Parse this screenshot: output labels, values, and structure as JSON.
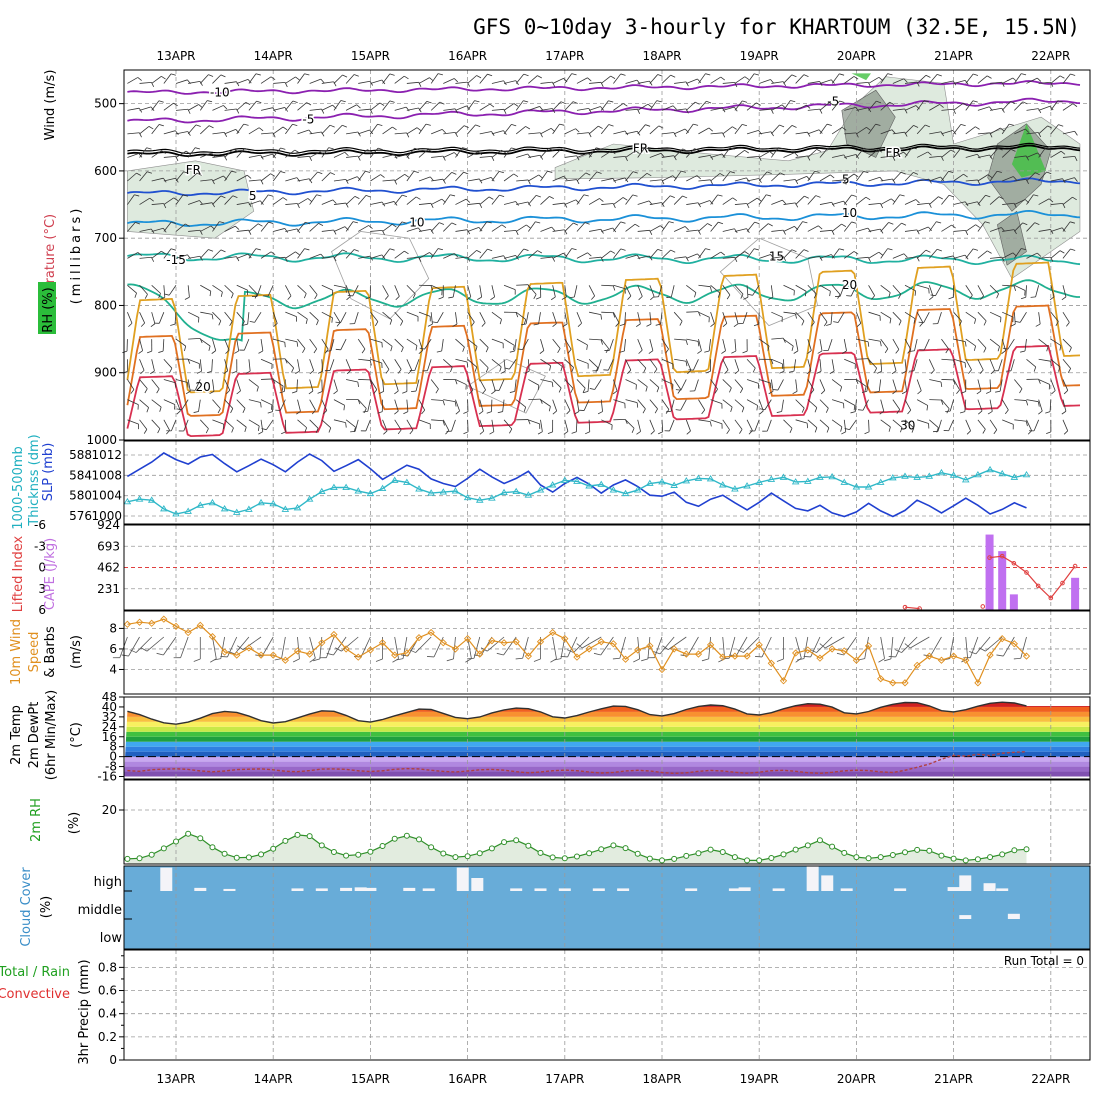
{
  "chart_data": {
    "type": "meteogram",
    "title": "GFS 0~10day 3-hourly for KHARTOUM (32.5E, 15.5N)",
    "dates": [
      "13APR",
      "14APR",
      "15APR",
      "16APR",
      "17APR",
      "18APR",
      "19APR",
      "20APR",
      "21APR",
      "22APR"
    ],
    "panels": {
      "upper_air": {
        "ylabel_temperature": "Temperature (°C)",
        "ylabel_wind": "Wind (m/s)",
        "ylabel_pressure": "(millibars)",
        "ylabel_rh": "RH (%)",
        "y_ticks": [
          500,
          600,
          700,
          800,
          900,
          1000
        ],
        "ylim": [
          1000,
          450
        ],
        "isotherm_labels": [
          {
            "text": "-10",
            "day": 0.35,
            "p": 482
          },
          {
            "text": "-5",
            "day": 1.3,
            "p": 522
          },
          {
            "text": "-5",
            "day": 6.7,
            "p": 495
          },
          {
            "text": "FR",
            "day": 0.1,
            "p": 597
          },
          {
            "text": "FR",
            "day": 4.7,
            "p": 565
          },
          {
            "text": "FR",
            "day": 7.3,
            "p": 572
          },
          {
            "text": "5",
            "day": 0.75,
            "p": 636
          },
          {
            "text": "5",
            "day": 6.85,
            "p": 611
          },
          {
            "text": "10",
            "day": 2.4,
            "p": 675
          },
          {
            "text": "10",
            "day": 6.85,
            "p": 661
          },
          {
            "text": "-15",
            "day": -0.1,
            "p": 731
          },
          {
            "text": "15",
            "day": 6.1,
            "p": 726
          },
          {
            "text": "20",
            "day": 6.85,
            "p": 768
          },
          {
            "text": "20",
            "day": 0.2,
            "p": 920
          },
          {
            "text": "30",
            "day": 7.45,
            "p": 977
          }
        ]
      },
      "thickness_slp": {
        "ylabel_thickness_1": "1000-500mb",
        "ylabel_thickness_2": "Thicknss (dm)",
        "ylabel_slp": "SLP (mb)",
        "thickness_ticks": [
          576,
          580,
          584,
          588
        ],
        "slp_ticks": [
          1000,
          1004,
          1008,
          1012
        ],
        "slp": [
          1007.8,
          1009.2,
          1010.6,
          1012.4,
          1011.1,
          1010.2,
          1011.6,
          1012.1,
          1010.3,
          1008.7,
          1009.9,
          1011.2,
          1010.1,
          1008.7,
          1010.6,
          1012.2,
          1010.9,
          1008.8,
          1009.9,
          1011.1,
          1009.3,
          1007.2,
          1008.6,
          1010.0,
          1009.2,
          1007.3,
          1006.4,
          1005.8,
          1007.4,
          1009.2,
          1007.7,
          1006.4,
          1007.4,
          1008.8,
          1006.1,
          1004.7,
          1006.4,
          1007.6,
          1006.3,
          1004.5,
          1006.1,
          1007.1,
          1005.8,
          1004.1,
          1003.9,
          1004.7,
          1002.7,
          1001.9,
          1003.3,
          1004.1,
          1002.6,
          1001.2,
          1002.7,
          1004.5,
          1003.0,
          1001.5,
          1001.0,
          1002.1,
          1000.6,
          999.9,
          1000.8,
          1002.5,
          1001.0,
          999.9,
          1001.1,
          1003.1,
          1002.0,
          1000.6,
          1002.0,
          1003.5,
          1002.1,
          1000.4,
          1001.3,
          1002.6,
          1001.6
        ],
        "thickness": [
          578.8,
          579.3,
          579.1,
          577.4,
          576.4,
          576.9,
          578.1,
          578.6,
          577.4,
          576.7,
          577.3,
          578.6,
          578.4,
          577.3,
          577.6,
          579.3,
          580.8,
          581.6,
          581.6,
          580.9,
          580.4,
          581.4,
          583.0,
          582.6,
          581.3,
          580.5,
          580.7,
          580.9,
          579.6,
          579.1,
          579.5,
          580.6,
          580.8,
          580.1,
          581.1,
          582.1,
          583.0,
          582.8,
          581.9,
          582.2,
          581.1,
          580.4,
          581.1,
          582.4,
          582.7,
          582.0,
          582.9,
          583.4,
          583.3,
          582.1,
          581.3,
          581.9,
          582.6,
          583.2,
          583.6,
          582.7,
          582.8,
          583.6,
          583.7,
          582.6,
          581.7,
          581.7,
          582.6,
          583.5,
          583.8,
          583.6,
          583.8,
          584.5,
          584.0,
          583.1,
          584.1,
          585.1,
          584.3,
          583.6,
          584.1
        ]
      },
      "cape_li": {
        "ylabel_li": "Lifted Index",
        "ylabel_cape": "CAPE (J/kg)",
        "li_ticks": [
          -6,
          -3,
          0,
          3,
          6
        ],
        "cape_ticks": [
          231,
          462,
          693,
          924
        ],
        "cape": [
          {
            "day": 8.37,
            "value": 820
          },
          {
            "day": 8.5,
            "value": 640
          },
          {
            "day": 8.62,
            "value": 170
          },
          {
            "day": 9.25,
            "value": 350
          }
        ],
        "li": [
          {
            "day": 7.5,
            "value": 5.6
          },
          {
            "day": 7.65,
            "value": 5.8
          },
          {
            "day": 8.3,
            "value": 5.5
          },
          {
            "day": 8.37,
            "value": -1.4
          },
          {
            "day": 8.5,
            "value": -1.6
          },
          {
            "day": 8.62,
            "value": -0.6
          },
          {
            "day": 8.75,
            "value": 0.7
          },
          {
            "day": 8.87,
            "value": 2.6
          },
          {
            "day": 9.0,
            "value": 4.3
          },
          {
            "day": 9.12,
            "value": 2.2
          },
          {
            "day": 9.25,
            "value": -0.2
          }
        ]
      },
      "wind10m": {
        "ylabel_1": "10m Wind",
        "ylabel_2": "Speed",
        "ylabel_3": "& Barbs",
        "ylabel_unit": "(m/s)",
        "y_ticks": [
          4,
          6,
          8
        ],
        "speed": [
          8.4,
          8.6,
          8.5,
          8.9,
          8.2,
          7.6,
          8.3,
          7.2,
          5.7,
          5.4,
          6.1,
          5.4,
          5.4,
          4.9,
          5.8,
          5.5,
          6.6,
          7.4,
          6.0,
          5.2,
          5.9,
          6.6,
          5.4,
          5.6,
          7.1,
          7.6,
          6.6,
          6.0,
          7.0,
          5.5,
          6.8,
          6.6,
          6.7,
          5.3,
          6.7,
          7.6,
          7.0,
          5.2,
          6.0,
          6.7,
          6.5,
          5.0,
          5.9,
          6.3,
          4.0,
          6.0,
          5.5,
          5.5,
          6.4,
          5.2,
          5.3,
          5.3,
          6.4,
          4.6,
          2.9,
          5.6,
          5.9,
          5.1,
          6.0,
          5.8,
          4.9,
          6.3,
          3.1,
          2.7,
          2.7,
          4.4,
          5.3,
          4.9,
          5.3,
          4.9,
          2.7,
          5.4,
          7.0,
          6.5,
          5.3
        ],
        "barb_angles": [
          200,
          210,
          225,
          230,
          215,
          200,
          180,
          170,
          190,
          205,
          220,
          235,
          210,
          190,
          175,
          165,
          185,
          200,
          215,
          230,
          205,
          180,
          170,
          190,
          210,
          225,
          205,
          185,
          170,
          195,
          210,
          230,
          215,
          195,
          180,
          170,
          190,
          205,
          225,
          240,
          215,
          195,
          175,
          185,
          200,
          220,
          235,
          210,
          185,
          175,
          195,
          210,
          225,
          205,
          180,
          165,
          190,
          205,
          225,
          240,
          215,
          190,
          170,
          185,
          205,
          225,
          240,
          210,
          190,
          175,
          200,
          220,
          230,
          210,
          195
        ]
      },
      "temp2m": {
        "ylabel_1": "2m Temp",
        "ylabel_2": "2m DewPt",
        "ylabel_3": "(6hr Min/Max)",
        "ylabel_unit": "(°C)",
        "y_ticks": [
          -16,
          -8,
          0,
          8,
          16,
          24,
          32,
          40,
          48
        ],
        "temp": [
          36.5,
          33.8,
          30.2,
          27.2,
          26.1,
          27.8,
          30.9,
          34.6,
          36.4,
          35.6,
          32.6,
          28.9,
          27.1,
          28.1,
          31.2,
          34.2,
          36.9,
          36.5,
          33.2,
          28.9,
          27.8,
          29.9,
          32.9,
          35.6,
          38.3,
          37.9,
          34.8,
          31.6,
          30.5,
          31.9,
          35.2,
          37.6,
          39.1,
          38.6,
          36.0,
          32.1,
          31.1,
          33.0,
          35.9,
          38.5,
          40.7,
          40.4,
          37.8,
          33.8,
          32.8,
          34.6,
          37.9,
          40.4,
          41.6,
          41.0,
          38.3,
          34.4,
          33.5,
          35.4,
          38.5,
          41.0,
          42.6,
          42.2,
          39.9,
          35.3,
          34.4,
          36.3,
          39.7,
          42.1,
          43.6,
          43.4,
          40.8,
          37.0,
          36.0,
          37.8,
          40.6,
          42.9,
          43.8,
          43.2,
          40.8
        ],
        "dewpt": [
          -11.2,
          -11.8,
          -10.5,
          -10.1,
          -9.8,
          -10.3,
          -11.5,
          -12.2,
          -11.6,
          -10.4,
          -10.1,
          -9.9,
          -10.6,
          -11.8,
          -12.1,
          -11.2,
          -10.0,
          -9.9,
          -10.3,
          -11.4,
          -12.0,
          -11.4,
          -10.2,
          -9.6,
          -9.9,
          -11.0,
          -11.9,
          -12.4,
          -11.6,
          -10.6,
          -10.3,
          -10.9,
          -12.1,
          -13.0,
          -12.4,
          -11.3,
          -10.8,
          -11.3,
          -12.4,
          -13.2,
          -12.7,
          -11.6,
          -11.0,
          -11.6,
          -12.8,
          -13.5,
          -13.0,
          -11.8,
          -11.1,
          -11.6,
          -12.6,
          -13.3,
          -12.5,
          -11.3,
          -11.0,
          -11.8,
          -12.9,
          -13.4,
          -12.6,
          -11.4,
          -10.9,
          -11.2,
          -12.3,
          -12.8,
          -11.0,
          -8.6,
          -5.9,
          -2.1,
          1.0,
          0.4,
          1.9,
          0.9,
          2.8,
          3.5,
          4.0
        ]
      },
      "rh2m": {
        "ylabel": "2m RH",
        "ylabel_unit": "(%)",
        "y_ticks": [
          20
        ],
        "rh": [
          3.7,
          3.9,
          5.1,
          7.2,
          9.5,
          12.1,
          10.6,
          7.6,
          5.4,
          4.1,
          4.2,
          5.2,
          7.1,
          9.7,
          11.7,
          11.3,
          8.2,
          6.0,
          4.8,
          5.1,
          6.1,
          8.0,
          10.4,
          11.4,
          10.2,
          7.6,
          5.5,
          4.3,
          4.6,
          5.6,
          7.2,
          9.3,
          9.9,
          8.1,
          5.7,
          4.2,
          3.9,
          4.5,
          5.6,
          6.9,
          8.2,
          7.3,
          5.4,
          3.8,
          3.2,
          3.7,
          4.7,
          5.6,
          6.8,
          6.0,
          4.3,
          3.2,
          3.2,
          4.0,
          5.2,
          6.8,
          8.2,
          9.9,
          7.8,
          5.7,
          4.3,
          3.9,
          4.3,
          5.0,
          5.9,
          6.7,
          6.4,
          4.8,
          3.8,
          3.2,
          3.6,
          4.3,
          5.2,
          6.6,
          6.9
        ]
      },
      "cloud": {
        "ylabel": "Cloud Cover",
        "ylabel_unit": "(%)",
        "levels": [
          "high",
          "middle",
          "low"
        ],
        "high_bars": [
          {
            "day": -0.1,
            "h": 0.9
          },
          {
            "day": 0.25,
            "h": 0.12
          },
          {
            "day": 0.55,
            "h": 0.08
          },
          {
            "day": 1.25,
            "h": 0.1
          },
          {
            "day": 1.5,
            "h": 0.1
          },
          {
            "day": 1.75,
            "h": 0.12
          },
          {
            "day": 1.9,
            "h": 0.14
          },
          {
            "day": 2.0,
            "h": 0.12
          },
          {
            "day": 2.4,
            "h": 0.12
          },
          {
            "day": 2.6,
            "h": 0.1
          },
          {
            "day": 2.95,
            "h": 0.9
          },
          {
            "day": 3.1,
            "h": 0.5
          },
          {
            "day": 3.5,
            "h": 0.1
          },
          {
            "day": 3.75,
            "h": 0.1
          },
          {
            "day": 4.0,
            "h": 0.1
          },
          {
            "day": 4.35,
            "h": 0.1
          },
          {
            "day": 4.6,
            "h": 0.1
          },
          {
            "day": 5.3,
            "h": 0.1
          },
          {
            "day": 5.75,
            "h": 0.1
          },
          {
            "day": 5.85,
            "h": 0.14
          },
          {
            "day": 6.2,
            "h": 0.1
          },
          {
            "day": 6.55,
            "h": 0.95
          },
          {
            "day": 6.7,
            "h": 0.6
          },
          {
            "day": 6.9,
            "h": 0.1
          },
          {
            "day": 7.45,
            "h": 0.1
          },
          {
            "day": 8.0,
            "h": 0.15
          },
          {
            "day": 8.12,
            "h": 0.6
          },
          {
            "day": 8.37,
            "h": 0.3
          },
          {
            "day": 8.5,
            "h": 0.1
          }
        ],
        "mid_bars": [
          {
            "day": 8.12,
            "h": 0.15
          },
          {
            "day": 8.62,
            "h": 0.2
          }
        ]
      },
      "precip": {
        "ylabel_total": "Total / Rain",
        "ylabel_convective": "Convective",
        "ylabel": "3hr Precip (mm)",
        "run_total": "Run Total = 0",
        "y_ticks": [
          0,
          0.2,
          0.4,
          0.6,
          0.8
        ],
        "ylim": [
          0,
          0.95
        ]
      }
    }
  }
}
